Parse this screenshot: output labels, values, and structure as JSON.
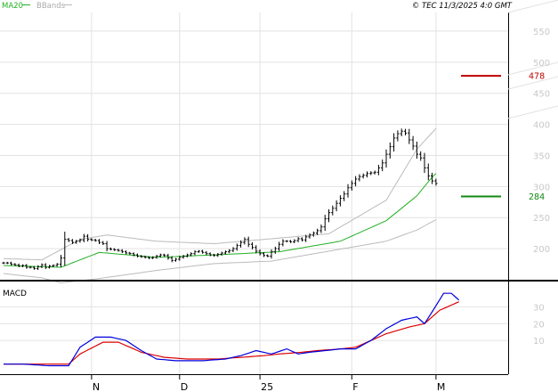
{
  "header": {
    "ma_label": "MA20",
    "bbands_label": "BBands",
    "copyright": "© TEC 11/3/2025 4:0 GMT"
  },
  "colors": {
    "price": "#000000",
    "ma": "#22b022",
    "bands": "#bbbbbb",
    "grid": "#e2e2e2",
    "axis_text": "#c8c8c8",
    "resistance": "#c00000",
    "support": "#118811",
    "macd": "#0000dd",
    "signal": "#dd0000"
  },
  "chart_data": [
    {
      "type": "line",
      "name": "price",
      "ylim": [
        150,
        580
      ],
      "yticks": [
        200,
        250,
        300,
        350,
        400,
        450,
        500,
        550
      ],
      "x_tick_labels": [
        "N",
        "D",
        "25",
        "F",
        "M"
      ],
      "x_tick_bar_index": [
        23,
        46,
        67,
        91,
        113
      ],
      "bars_close": [
        177,
        177,
        175,
        174,
        172,
        173,
        170,
        170,
        168,
        171,
        174,
        170,
        172,
        173,
        175,
        185,
        215,
        213,
        210,
        212,
        214,
        220,
        215,
        214,
        213,
        210,
        208,
        200,
        199,
        198,
        197,
        195,
        193,
        192,
        190,
        188,
        187,
        186,
        185,
        186,
        188,
        190,
        189,
        185,
        181,
        183,
        186,
        188,
        190,
        192,
        195,
        196,
        194,
        192,
        190,
        189,
        191,
        193,
        195,
        197,
        200,
        205,
        210,
        215,
        207,
        202,
        196,
        192,
        189,
        188,
        195,
        200,
        207,
        212,
        212,
        211,
        213,
        216,
        214,
        219,
        222,
        225,
        229,
        235,
        248,
        258,
        265,
        273,
        281,
        288,
        298,
        305,
        312,
        316,
        318,
        321,
        322,
        323,
        330,
        338,
        352,
        364,
        378,
        385,
        389,
        386,
        375,
        365,
        352,
        346,
        330,
        317,
        309,
        305
      ],
      "ma20_anchors": [
        [
          0,
          173
        ],
        [
          15,
          170
        ],
        [
          25,
          194
        ],
        [
          40,
          186
        ],
        [
          55,
          190
        ],
        [
          72,
          195
        ],
        [
          88,
          212
        ],
        [
          100,
          245
        ],
        [
          108,
          285
        ],
        [
          112,
          315
        ],
        [
          117,
          345
        ]
      ],
      "bband_upper_anchors": [
        [
          0,
          184
        ],
        [
          10,
          182
        ],
        [
          20,
          215
        ],
        [
          27,
          222
        ],
        [
          40,
          212
        ],
        [
          55,
          208
        ],
        [
          70,
          216
        ],
        [
          85,
          224
        ],
        [
          100,
          278
        ],
        [
          108,
          360
        ],
        [
          114,
          400
        ],
        [
          117,
          408
        ]
      ],
      "bband_lower_anchors": [
        [
          0,
          160
        ],
        [
          10,
          153
        ],
        [
          15,
          145
        ],
        [
          25,
          152
        ],
        [
          40,
          165
        ],
        [
          55,
          176
        ],
        [
          70,
          180
        ],
        [
          85,
          196
        ],
        [
          100,
          212
        ],
        [
          108,
          230
        ],
        [
          114,
          250
        ],
        [
          117,
          262
        ]
      ],
      "levels": [
        {
          "label": "478",
          "value": 478,
          "role": "resistance"
        },
        {
          "label": "284",
          "value": 284,
          "role": "support"
        }
      ],
      "series": [
        {
          "name": "MA20"
        },
        {
          "name": "BBands"
        }
      ]
    },
    {
      "type": "line",
      "title": "MACD",
      "ylim": [
        -10,
        45
      ],
      "yticks": [
        10,
        20,
        30
      ],
      "macd_anchors": [
        [
          0,
          -4
        ],
        [
          5,
          -4
        ],
        [
          12,
          -5
        ],
        [
          17,
          -5
        ],
        [
          20,
          6
        ],
        [
          24,
          12
        ],
        [
          28,
          12
        ],
        [
          32,
          10
        ],
        [
          36,
          4
        ],
        [
          40,
          -1
        ],
        [
          45,
          -2
        ],
        [
          52,
          -2
        ],
        [
          58,
          -1
        ],
        [
          62,
          1
        ],
        [
          66,
          4
        ],
        [
          70,
          2
        ],
        [
          74,
          5
        ],
        [
          77,
          2
        ],
        [
          80,
          3
        ],
        [
          84,
          4
        ],
        [
          88,
          5
        ],
        [
          92,
          5
        ],
        [
          96,
          10
        ],
        [
          100,
          17
        ],
        [
          104,
          22
        ],
        [
          108,
          24
        ],
        [
          110,
          20
        ],
        [
          112,
          27
        ],
        [
          115,
          38
        ],
        [
          117,
          38
        ],
        [
          119,
          34
        ]
      ],
      "signal_anchors": [
        [
          0,
          -4
        ],
        [
          8,
          -4
        ],
        [
          17,
          -4
        ],
        [
          20,
          2
        ],
        [
          26,
          9
        ],
        [
          30,
          9
        ],
        [
          36,
          3
        ],
        [
          42,
          0
        ],
        [
          48,
          -1
        ],
        [
          56,
          -1
        ],
        [
          62,
          0
        ],
        [
          68,
          1
        ],
        [
          72,
          2
        ],
        [
          78,
          3
        ],
        [
          82,
          4
        ],
        [
          88,
          5
        ],
        [
          92,
          6
        ],
        [
          100,
          14
        ],
        [
          106,
          18
        ],
        [
          110,
          20
        ],
        [
          114,
          28
        ],
        [
          117,
          31
        ],
        [
          119,
          33
        ]
      ]
    }
  ]
}
